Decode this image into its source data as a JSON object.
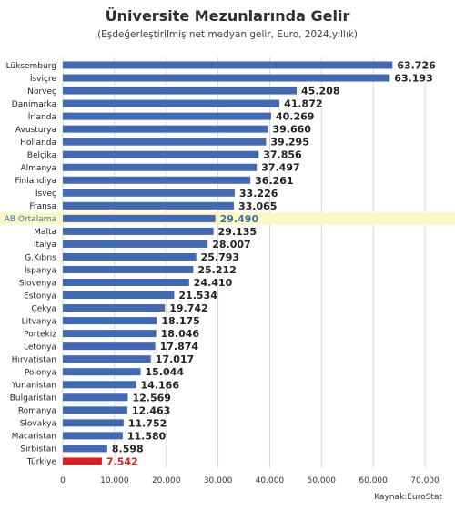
{
  "title": "Üniversite Mezunlarında Gelir",
  "subtitle": "(Eşdeğerleştirilmiş net medyan gelir, Euro, 2024,yıllık)",
  "source": "Kaynak:EuroStat",
  "colors": {
    "bar": "#4169b4",
    "highlight_bar": "#d92020",
    "highlight_band": "#fdf8c3",
    "highlight_label": "#3b73a8",
    "grid": "#d8d8d8",
    "text": "#222222"
  },
  "chart_data": {
    "type": "bar",
    "orientation": "horizontal",
    "title": "Üniversite Mezunlarında Gelir",
    "subtitle": "(Eşdeğerleştirilmiş net medyan gelir, Euro, 2024,yıllık)",
    "xlim": [
      0,
      70000
    ],
    "x_ticks": [
      0,
      10000,
      20000,
      30000,
      40000,
      50000,
      60000,
      70000
    ],
    "x_tick_labels": [
      "0",
      "10.000",
      "20.000",
      "30.000",
      "40.000",
      "50.000",
      "60.000",
      "70.000"
    ],
    "grid": true,
    "categories": [
      "Lüksemburg",
      "İsviçre",
      "Norveç",
      "Danimarka",
      "İrlanda",
      "Avusturya",
      "Hollanda",
      "Belçika",
      "Almanya",
      "Finlandiya",
      "İsveç",
      "Fransa",
      "AB Ortalama",
      "Malta",
      "İtalya",
      "G.Kıbrıs",
      "İspanya",
      "Slovenya",
      "Estonya",
      "Çekya",
      "Litvanya",
      "Portekiz",
      "Letonya",
      "Hırvatistan",
      "Polonya",
      "Yunanistan",
      "Bulgaristan",
      "Romanya",
      "Slovakya",
      "Macaristan",
      "Sırbistan",
      "Türkiye"
    ],
    "values": [
      63726,
      63193,
      45208,
      41872,
      40269,
      39660,
      39295,
      37856,
      37497,
      36261,
      33226,
      33065,
      29490,
      29135,
      28007,
      25793,
      25212,
      24410,
      21534,
      19742,
      18175,
      18046,
      17874,
      17017,
      15044,
      14166,
      12569,
      12463,
      11752,
      11580,
      8598,
      7542
    ],
    "value_labels": [
      "63.726",
      "63.193",
      "45.208",
      "41.872",
      "40.269",
      "39.660",
      "39.295",
      "37.856",
      "37.497",
      "36.261",
      "33.226",
      "33.065",
      "29.490",
      "29.135",
      "28.007",
      "25.793",
      "25.212",
      "24.410",
      "21.534",
      "19.742",
      "18.175",
      "18.046",
      "17.874",
      "17.017",
      "15.044",
      "14.166",
      "12.569",
      "12.463",
      "11.752",
      "11.580",
      "8.598",
      "7.542"
    ],
    "highlight_band": "AB Ortalama",
    "highlight_bar": "Türkiye"
  }
}
